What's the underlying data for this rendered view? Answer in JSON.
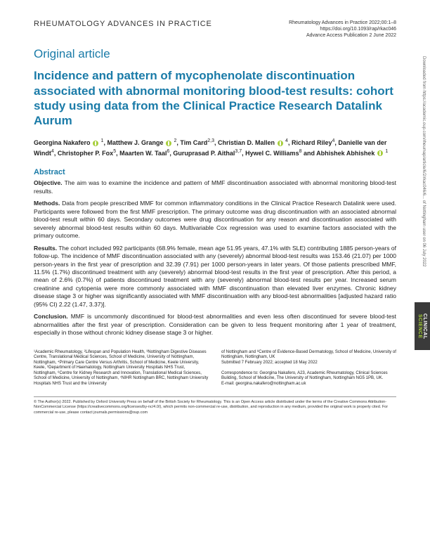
{
  "header": {
    "journal_name": "RHEUMATOLOGY ADVANCES IN PRACTICE",
    "citation": "Rheumatology Advances in Practice 2022;00:1–8",
    "doi": "https://doi.org/10.1093/rap/rkac046",
    "pub_date": "Advance Access Publication 2 June 2022"
  },
  "article_type": "Original article",
  "title": "Incidence and pattern of mycophenolate discontinuation associated with abnormal monitoring blood-test results: cohort study using data from the Clinical Practice Research Datalink Aurum",
  "authors_html": "Georgina Nakafero <span class='orcid' data-name='orcid-icon' data-interactable='false'></span> <sup>1</sup>, Matthew J. Grange <span class='orcid' data-name='orcid-icon' data-interactable='false'></span> <sup>2</sup>, Tim Card<sup>2,3</sup>, Christian D. Mallen <span class='orcid' data-name='orcid-icon' data-interactable='false'></span> <sup>4</sup>, Richard Riley<sup>4</sup>, Danielle van der Windt<sup>4</sup>, Christopher P. Fox<sup>5</sup>, Maarten W. Taal<sup>6</sup>, Guruprasad P. Aithal<sup>3,7</sup>, Hywel C. Williams<sup>8</sup> and Abhishek Abhishek <span class='orcid' data-name='orcid-icon' data-interactable='false'></span> <sup>1</sup>",
  "abstract": {
    "heading": "Abstract",
    "objective_label": "Objective.",
    "objective": "The aim was to examine the incidence and pattern of MMF discontinuation associated with abnormal monitoring blood-test results.",
    "methods_label": "Methods.",
    "methods": "Data from people prescribed MMF for common inflammatory conditions in the Clinical Practice Research Datalink were used. Participants were followed from the first MMF prescription. The primary outcome was drug discontinuation with an associated abnormal blood-test result within 60 days. Secondary outcomes were drug discontinuation for any reason and discontinuation associated with severely abnormal blood-test results within 60 days. Multivariable Cox regression was used to examine factors associated with the primary outcome.",
    "results_label": "Results.",
    "results": "The cohort included 992 participants (68.9% female, mean age 51.95 years, 47.1% with SLE) contributing 1885 person-years of follow-up. The incidence of MMF discontinuation associated with any (severely) abnormal blood-test results was 153.46 (21.07) per 1000 person-years in the first year of prescription and 32.39 (7.91) per 1000 person-years in later years. Of those patients prescribed MMF, 11.5% (1.7%) discontinued treatment with any (severely) abnormal blood-test results in the first year of prescription. After this period, a mean of 2.6% (0.7%) of patients discontinued treatment with any (severely) abnormal blood-test results per year. Increased serum creatinine and cytopenia were more commonly associated with MMF discontinuation than elevated liver enzymes. Chronic kidney disease stage 3 or higher was significantly associated with MMF discontinuation with any blood-test abnormalities [adjusted hazard ratio (95% CI) 2.22 (1.47, 3.37)].",
    "conclusion_label": "Conclusion.",
    "conclusion": "MMF is uncommonly discontinued for blood-test abnormalities and even less often discontinued for severe blood-test abnormalities after the first year of prescription. Consideration can be given to less frequent monitoring after 1 year of treatment, especially in those without chronic kidney disease stage 3 or higher."
  },
  "affiliations": {
    "left": "¹Academic Rheumatology, ²Lifespan and Population Health, ³Nottingham Digestive Diseases Centre, Translational Medical Sciences, School of Medicine, University of Nottingham, Nottingham, ⁴Primary Care Centre Versus Arthritis, School of Medicine, Keele University, Keele, ⁵Department of Haematology, Nottingham University Hospitals NHS Trust, Nottingham, ⁶Centre for Kidney Research and Innovation, Translational Medical Sciences, School of Medicine, University of Nottingham, ⁷NIHR Nottingham BRC, Nottingham University Hospitals NHS Trust and the University",
    "right": "of Nottingham and ⁸Centre of Evidence-Based Dermatology, School of Medicine, University of Nottingham, Nottingham, UK\nSubmitted 7 February 2022; accepted 18 May 2022\n\nCorrespondence to: Georgina Nakafero, A23, Academic Rheumatology, Clinical Sciences Building, School of Medicine, The University of Nottingham, Nottingham NG5 1PB, UK.\nE-mail: georgina.nakafero@nottingham.ac.uk"
  },
  "footer": "© The Author(s) 2022. Published by Oxford University Press on behalf of the British Society for Rheumatology. This is an Open Access article distributed under the terms of the Creative Commons Attribution-NonCommercial License (https://creativecommons.org/licenses/by-nc/4.0/), which permits non-commercial re-use, distribution, and reproduction in any medium, provided the original work is properly cited. For commercial re-use, please contact journals.permissions@oup.com",
  "side_tab": {
    "line1": "CLINICAL",
    "line2": "SCIENCE"
  },
  "download_note": "Downloaded from https://academic.oup.com/rheumap/article/6/2/rkac046/6... of Nottingham user on 06 July 2022",
  "colors": {
    "brand_blue": "#1a7ba8",
    "orcid_green": "#a6ce39",
    "text": "#222222",
    "tab_bg": "#3a3a3a"
  }
}
